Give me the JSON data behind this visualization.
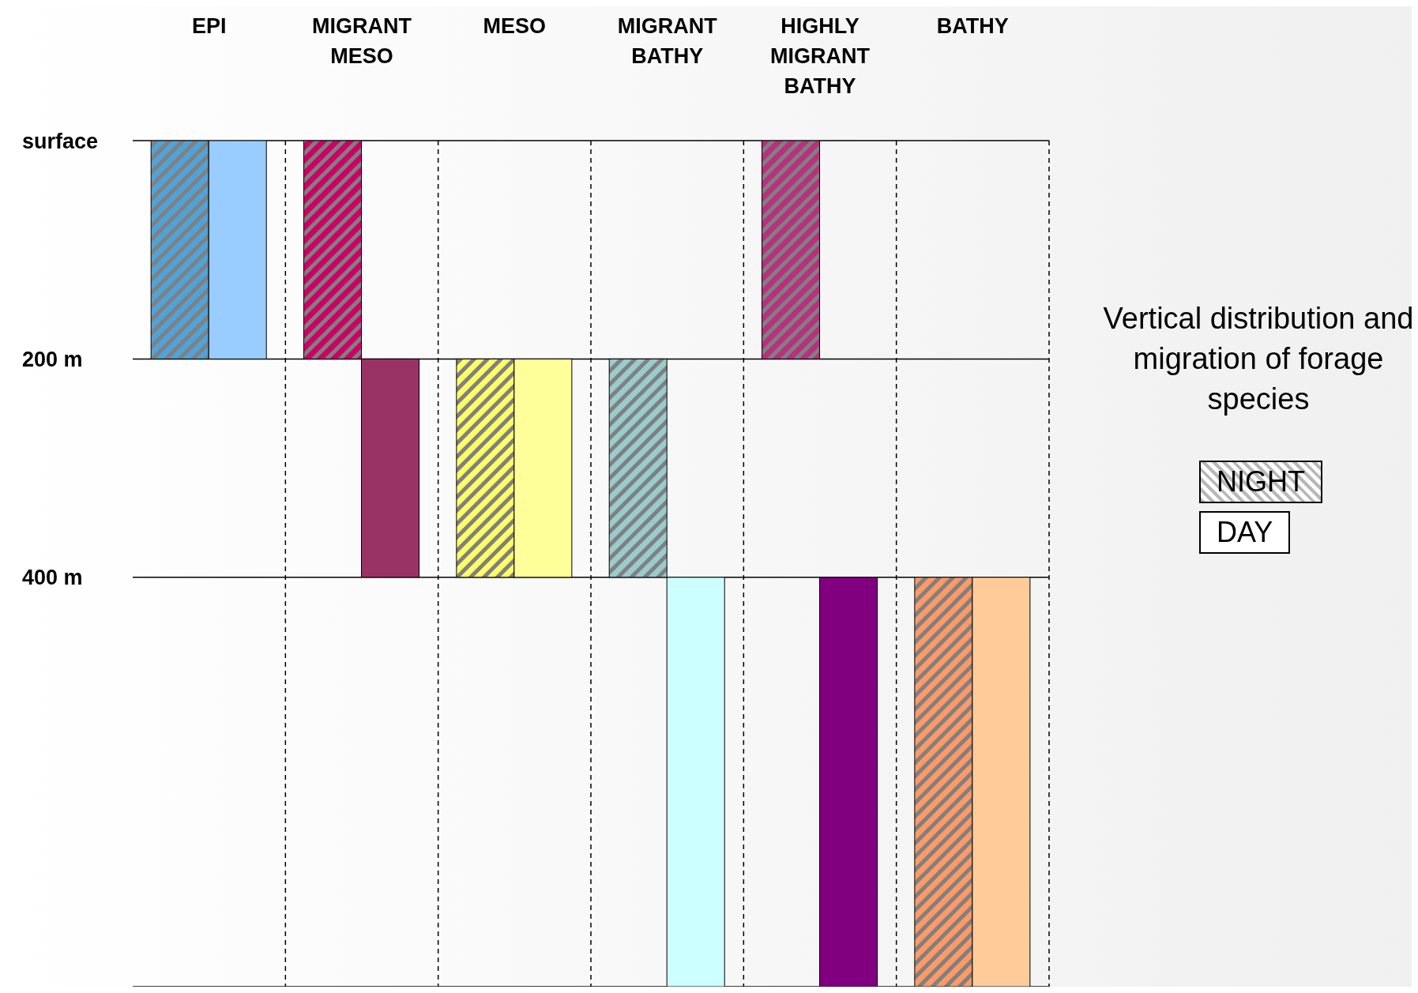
{
  "chart_data": {
    "type": "bar",
    "title": "Vertical distribution and migration of forage species",
    "categories": [
      "EPI",
      "MIGRANT MESO",
      "MESO",
      "MIGRANT BATHY",
      "HIGHLY MIGRANT BATHY",
      "BATHY"
    ],
    "series": [
      {
        "name": "NIGHT",
        "color": "#808080",
        "colors": [
          "#4fa3d9",
          "#cc0066",
          "#ffff66",
          "#99cccc",
          "#b8307f",
          "#ff9966"
        ],
        "base": [
          0,
          0,
          200,
          200,
          0,
          400
        ],
        "values": [
          200,
          200,
          200,
          200,
          200,
          375
        ]
      },
      {
        "name": "DAY",
        "colors": [
          "#99ccff",
          "#993366",
          "#ffff99",
          "#ccffff",
          "#800080",
          "#ffcc99"
        ],
        "base": [
          0,
          200,
          200,
          400,
          400,
          400
        ],
        "values": [
          200,
          200,
          200,
          375,
          375,
          375
        ]
      }
    ],
    "ylim": [
      775,
      0
    ],
    "yticks": [
      {
        "value": 0,
        "label": "surface"
      },
      {
        "value": 200,
        "label": "200 m"
      },
      {
        "value": 400,
        "label": "400 m"
      }
    ],
    "grid": true,
    "legend": "right"
  }
}
